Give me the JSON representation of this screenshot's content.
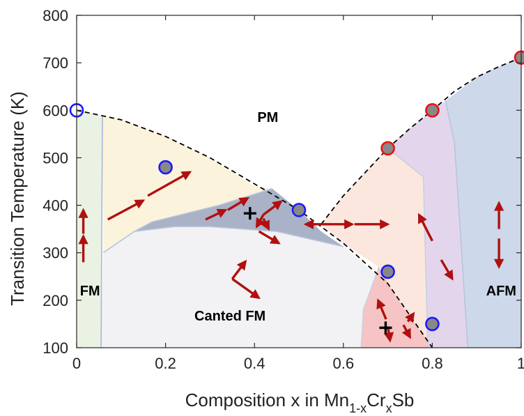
{
  "chart_data": {
    "type": "scatter",
    "x_axis": {
      "label_parts": [
        {
          "text": "Composition x in Mn",
          "role": "normal"
        },
        {
          "text": "1-x",
          "role": "sub"
        },
        {
          "text": "Cr",
          "role": "normal"
        },
        {
          "text": "x",
          "role": "sub"
        },
        {
          "text": "Sb",
          "role": "normal"
        }
      ],
      "range": [
        0,
        1
      ],
      "ticks": [
        {
          "value": 0,
          "label": "0"
        },
        {
          "value": 0.2,
          "label": "0.2"
        },
        {
          "value": 0.4,
          "label": "0.4"
        },
        {
          "value": 0.6,
          "label": "0.6"
        },
        {
          "value": 0.8,
          "label": "0.8"
        },
        {
          "value": 1,
          "label": "1"
        }
      ]
    },
    "y_axis": {
      "label": "Transition Temperature (K)",
      "range": [
        100,
        800
      ],
      "ticks": [
        {
          "value": 100,
          "label": "100"
        },
        {
          "value": 200,
          "label": "200"
        },
        {
          "value": 300,
          "label": "300"
        },
        {
          "value": 400,
          "label": "400"
        },
        {
          "value": 500,
          "label": "500"
        },
        {
          "value": 600,
          "label": "600"
        },
        {
          "value": 700,
          "label": "700"
        },
        {
          "value": 800,
          "label": "800"
        }
      ]
    },
    "grid": false,
    "series": [
      {
        "marker": "circle",
        "edge_color": "#1a1aff",
        "fill": "none",
        "points": [
          {
            "x": 0,
            "y": 600
          }
        ]
      },
      {
        "marker": "circle",
        "edge_color": "#1a1aff",
        "fill": "#888888",
        "points": [
          {
            "x": 0.2,
            "y": 480
          },
          {
            "x": 0.7,
            "y": 260
          },
          {
            "x": 0.8,
            "y": 150
          }
        ]
      },
      {
        "marker": "circle",
        "edge_color": "#1a1aff",
        "fill": "#888888",
        "points": [
          {
            "x": 0.5,
            "y": 390
          }
        ]
      },
      {
        "marker": "circle",
        "edge_color": "#ee1111",
        "fill": "#888888",
        "points": [
          {
            "x": 0.7,
            "y": 520
          },
          {
            "x": 0.8,
            "y": 600
          },
          {
            "x": 1.0,
            "y": 711
          }
        ]
      }
    ],
    "boundary_lines": [
      {
        "style": "dashed",
        "color": "#000000",
        "points": [
          [
            0,
            600
          ],
          [
            0.1,
            580
          ],
          [
            0.2,
            545
          ],
          [
            0.3,
            500
          ],
          [
            0.4,
            445
          ],
          [
            0.5,
            390
          ],
          [
            0.6,
            320
          ],
          [
            0.7,
            235
          ],
          [
            0.8,
            100
          ]
        ]
      },
      {
        "style": "dashed",
        "color": "#000000",
        "points": [
          [
            0.55,
            360
          ],
          [
            0.6,
            420
          ],
          [
            0.65,
            470
          ],
          [
            0.7,
            520
          ],
          [
            0.75,
            562
          ],
          [
            0.8,
            600
          ],
          [
            0.85,
            640
          ],
          [
            0.9,
            670
          ],
          [
            0.95,
            692
          ],
          [
            1.0,
            711
          ]
        ]
      }
    ],
    "regions": [
      {
        "name": "FM",
        "color": "#e9f2e3",
        "polygon": [
          [
            0,
            600
          ],
          [
            0.058,
            588
          ],
          [
            0.055,
            100
          ],
          [
            0,
            100
          ]
        ]
      },
      {
        "name": "yellow",
        "color": "#fcf3dc",
        "polygon": [
          [
            0.058,
            588
          ],
          [
            0.1,
            580
          ],
          [
            0.2,
            545
          ],
          [
            0.3,
            500
          ],
          [
            0.4,
            440
          ],
          [
            0.44,
            435
          ],
          [
            0.32,
            400
          ],
          [
            0.17,
            365
          ],
          [
            0.06,
            300
          ]
        ]
      },
      {
        "name": "dark-blue",
        "color": "#a9b2c6",
        "polygon": [
          [
            0.17,
            365
          ],
          [
            0.32,
            400
          ],
          [
            0.44,
            435
          ],
          [
            0.5,
            390
          ],
          [
            0.55,
            345
          ],
          [
            0.6,
            313
          ],
          [
            0.45,
            345
          ],
          [
            0.3,
            355
          ],
          [
            0.13,
            345
          ]
        ]
      },
      {
        "name": "canted",
        "color": "#f2f2f4",
        "polygon": [
          [
            0.06,
            300
          ],
          [
            0.13,
            345
          ],
          [
            0.22,
            355
          ],
          [
            0.3,
            355
          ],
          [
            0.45,
            345
          ],
          [
            0.6,
            313
          ],
          [
            0.7,
            235
          ],
          [
            0.8,
            100
          ],
          [
            0.055,
            100
          ]
        ]
      },
      {
        "name": "red",
        "color": "#f6c4c4",
        "polygon": [
          [
            0.68,
            270
          ],
          [
            0.72,
            205
          ],
          [
            0.8,
            100
          ],
          [
            0.64,
            100
          ],
          [
            0.645,
            180
          ]
        ]
      },
      {
        "name": "peach",
        "color": "#fbe7de",
        "polygon": [
          [
            0.55,
            360
          ],
          [
            0.6,
            420
          ],
          [
            0.65,
            470
          ],
          [
            0.7,
            520
          ],
          [
            0.78,
            460
          ],
          [
            0.79,
            100
          ],
          [
            0.8,
            100
          ],
          [
            0.72,
            205
          ],
          [
            0.68,
            270
          ],
          [
            0.6,
            320
          ]
        ]
      },
      {
        "name": "purple",
        "color": "#e3d6ec",
        "polygon": [
          [
            0.7,
            520
          ],
          [
            0.75,
            562
          ],
          [
            0.8,
            600
          ],
          [
            0.83,
            620
          ],
          [
            0.85,
            530
          ],
          [
            0.88,
            100
          ],
          [
            0.79,
            100
          ],
          [
            0.78,
            460
          ]
        ]
      },
      {
        "name": "AFM",
        "color": "#cdd8ea",
        "polygon": [
          [
            0.83,
            620
          ],
          [
            0.9,
            670
          ],
          [
            0.95,
            692
          ],
          [
            1.0,
            711
          ],
          [
            1.0,
            100
          ],
          [
            0.88,
            100
          ],
          [
            0.85,
            530
          ]
        ]
      }
    ],
    "region_borders": [
      {
        "color": "#a8b8d8",
        "points": [
          [
            0.058,
            588
          ],
          [
            0.055,
            100
          ]
        ]
      },
      {
        "color": "#b8c4dc",
        "points": [
          [
            0.06,
            300
          ],
          [
            0.13,
            345
          ],
          [
            0.17,
            365
          ],
          [
            0.32,
            400
          ],
          [
            0.44,
            435
          ]
        ]
      },
      {
        "color": "#b8c4dc",
        "points": [
          [
            0.13,
            345
          ],
          [
            0.22,
            355
          ],
          [
            0.3,
            355
          ],
          [
            0.45,
            345
          ],
          [
            0.6,
            313
          ]
        ]
      },
      {
        "color": "#c8d0e0",
        "points": [
          [
            0.68,
            270
          ],
          [
            0.645,
            180
          ],
          [
            0.64,
            100
          ]
        ]
      },
      {
        "color": "#c8d0e0",
        "points": [
          [
            0.7,
            520
          ],
          [
            0.78,
            460
          ],
          [
            0.79,
            100
          ]
        ]
      },
      {
        "color": "#b8c4dc",
        "points": [
          [
            0.83,
            620
          ],
          [
            0.85,
            530
          ],
          [
            0.88,
            100
          ]
        ]
      }
    ],
    "arrows": [
      {
        "from": [
          0.015,
          280
        ],
        "to": [
          0.015,
          335
        ]
      },
      {
        "from": [
          0.015,
          340
        ],
        "to": [
          0.015,
          390
        ]
      },
      {
        "from": [
          0.07,
          370
        ],
        "to": [
          0.15,
          410
        ]
      },
      {
        "from": [
          0.16,
          420
        ],
        "to": [
          0.255,
          470
        ]
      },
      {
        "from": [
          0.29,
          370
        ],
        "to": [
          0.335,
          390
        ]
      },
      {
        "from": [
          0.34,
          390
        ],
        "to": [
          0.385,
          415
        ]
      },
      {
        "from": [
          0.42,
          380
        ],
        "to": [
          0.405,
          355
        ]
      },
      {
        "from": [
          0.42,
          380
        ],
        "to": [
          0.46,
          408
        ]
      },
      {
        "from": [
          0.41,
          345
        ],
        "to": [
          0.455,
          320
        ]
      },
      {
        "from": [
          0.42,
          372
        ],
        "to": [
          0.432,
          350
        ]
      },
      {
        "from": [
          0.35,
          245
        ],
        "to": [
          0.38,
          282
        ]
      },
      {
        "from": [
          0.35,
          245
        ],
        "to": [
          0.41,
          205
        ]
      },
      {
        "from": [
          0.565,
          360
        ],
        "to": [
          0.62,
          360
        ]
      },
      {
        "from": [
          0.565,
          360
        ],
        "to": [
          0.515,
          360
        ]
      },
      {
        "from": [
          0.625,
          360
        ],
        "to": [
          0.7,
          360
        ]
      },
      {
        "from": [
          0.8,
          325
        ],
        "to": [
          0.77,
          380
        ]
      },
      {
        "from": [
          0.82,
          285
        ],
        "to": [
          0.845,
          245
        ]
      },
      {
        "from": [
          0.95,
          350
        ],
        "to": [
          0.95,
          405
        ]
      },
      {
        "from": [
          0.95,
          330
        ],
        "to": [
          0.95,
          270
        ]
      },
      {
        "from": [
          0.696,
          160
        ],
        "to": [
          0.678,
          200
        ]
      },
      {
        "from": [
          0.7,
          145
        ],
        "to": [
          0.705,
          115
        ]
      },
      {
        "from": [
          0.735,
          148
        ],
        "to": [
          0.75,
          122
        ]
      },
      {
        "from": [
          0.745,
          155
        ],
        "to": [
          0.758,
          172
        ]
      }
    ],
    "plus_markers": [
      {
        "x": 0.39,
        "y": 383
      },
      {
        "x": 0.695,
        "y": 142
      }
    ],
    "annotations": [
      {
        "text": "PM",
        "x": 0.43,
        "y": 583
      },
      {
        "text": "FM",
        "x": 0.03,
        "y": 218
      },
      {
        "text": "Canted FM",
        "x": 0.345,
        "y": 165
      },
      {
        "text": "AFM",
        "x": 0.955,
        "y": 218
      }
    ]
  },
  "colors": {
    "arrow": "#b01010",
    "axis": "#262626"
  }
}
